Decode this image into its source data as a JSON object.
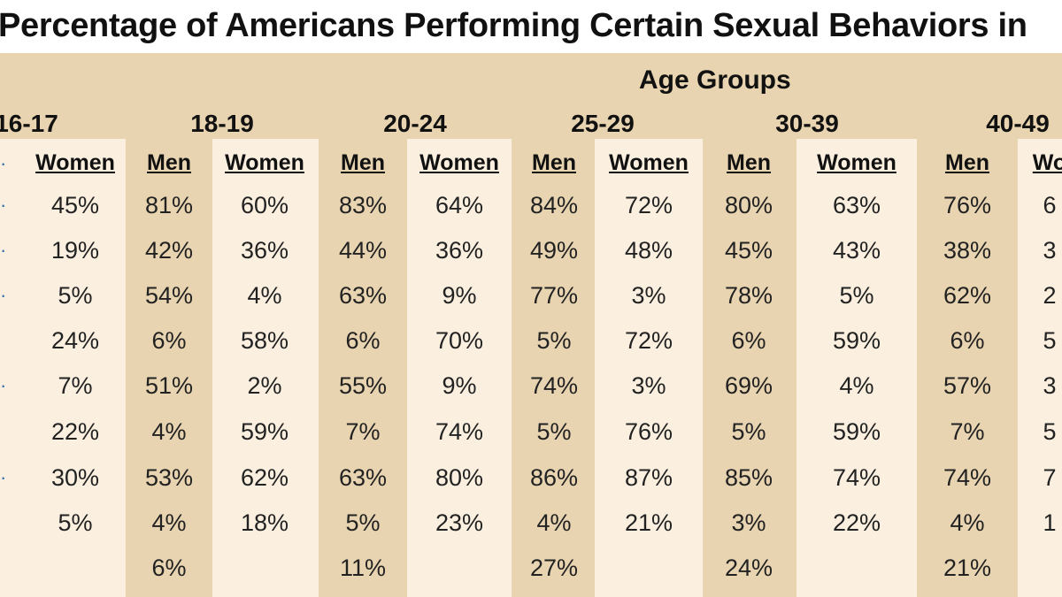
{
  "chart_data": {
    "type": "table",
    "title": "Percentage of Americans Performing Certain Sexual Behaviors in",
    "header": "Age Groups",
    "groups": [
      "16-17",
      "18-19",
      "20-24",
      "25-29",
      "30-39",
      "40-49"
    ],
    "columns": [
      {
        "group": "16-17",
        "sex": "Women",
        "values": [
          "45%",
          "19%",
          "5%",
          "24%",
          "7%",
          "22%",
          "30%",
          "5%",
          ""
        ]
      },
      {
        "group": "18-19",
        "sex": "Men",
        "values": [
          "81%",
          "42%",
          "54%",
          "6%",
          "51%",
          "4%",
          "53%",
          "4%",
          "6%"
        ]
      },
      {
        "group": "18-19",
        "sex": "Women",
        "values": [
          "60%",
          "36%",
          "4%",
          "58%",
          "2%",
          "59%",
          "62%",
          "18%",
          ""
        ]
      },
      {
        "group": "20-24",
        "sex": "Men",
        "values": [
          "83%",
          "44%",
          "63%",
          "6%",
          "55%",
          "7%",
          "63%",
          "5%",
          "11%"
        ]
      },
      {
        "group": "20-24",
        "sex": "Women",
        "values": [
          "64%",
          "36%",
          "9%",
          "70%",
          "9%",
          "74%",
          "80%",
          "23%",
          ""
        ]
      },
      {
        "group": "25-29",
        "sex": "Men",
        "values": [
          "84%",
          "49%",
          "77%",
          "5%",
          "74%",
          "5%",
          "86%",
          "4%",
          "27%"
        ]
      },
      {
        "group": "25-29",
        "sex": "Women",
        "values": [
          "72%",
          "48%",
          "3%",
          "72%",
          "3%",
          "76%",
          "87%",
          "21%",
          ""
        ]
      },
      {
        "group": "30-39",
        "sex": "Men",
        "values": [
          "80%",
          "45%",
          "78%",
          "6%",
          "69%",
          "5%",
          "85%",
          "3%",
          "24%"
        ]
      },
      {
        "group": "30-39",
        "sex": "Women",
        "values": [
          "63%",
          "43%",
          "5%",
          "59%",
          "4%",
          "59%",
          "74%",
          "22%",
          ""
        ]
      },
      {
        "group": "40-49",
        "sex": "Men",
        "values": [
          "76%",
          "38%",
          "62%",
          "6%",
          "57%",
          "7%",
          "74%",
          "4%",
          "21%"
        ]
      },
      {
        "group": "40-49",
        "sex": "Wo",
        "values": [
          "6",
          "3",
          "2",
          "5",
          "3",
          "5",
          "7",
          "1",
          ""
        ]
      }
    ]
  },
  "colors": {
    "band_light": "#fbf0e0",
    "band_dark": "#e8d4b0",
    "edge_mark": "#2e6aa8"
  }
}
